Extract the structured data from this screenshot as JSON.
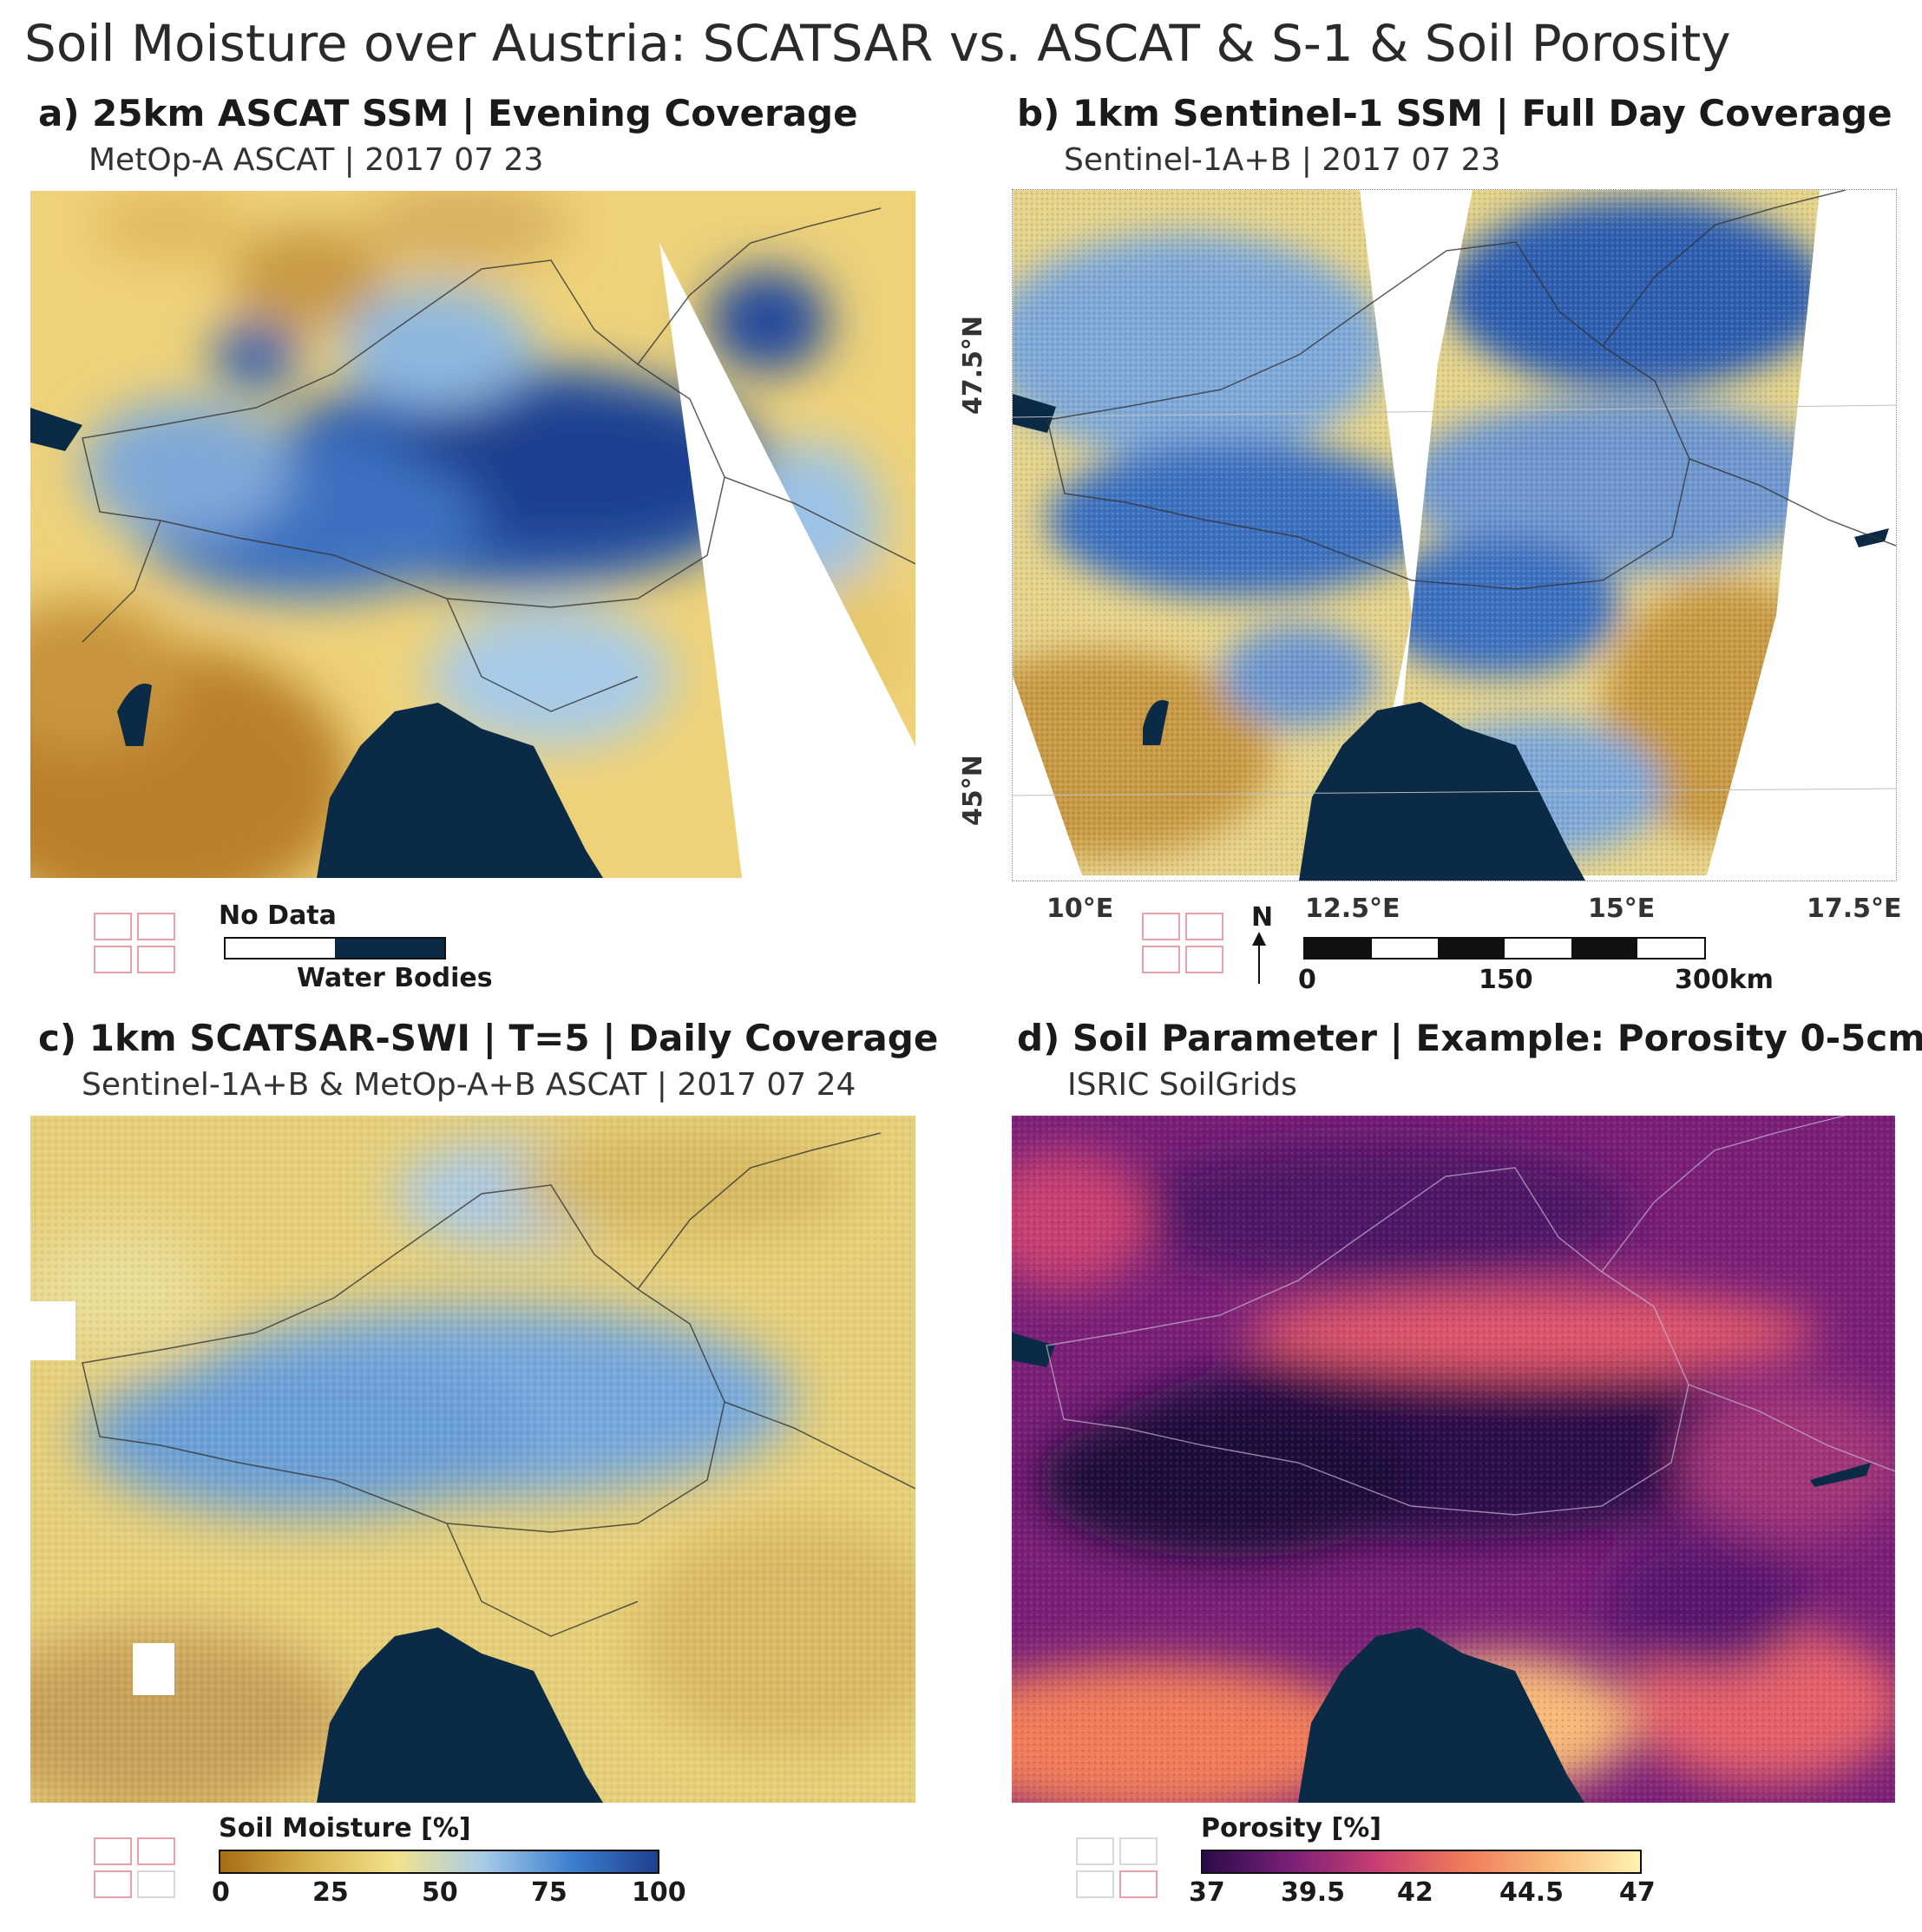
{
  "title": "Soil Moisture over Austria: SCATSAR vs. ASCAT & S-1 & Soil Porosity",
  "panels": {
    "a": {
      "title": "a) 25km ASCAT SSM | Evening Coverage",
      "subtitle": "MetOp-A ASCAT | 2017 07 23"
    },
    "b": {
      "title": "b) 1km Sentinel-1 SSM | Full Day Coverage",
      "subtitle": "Sentinel-1A+B | 2017 07 23"
    },
    "c": {
      "title": "c) 1km SCATSAR-SWI | T=5 |  Daily Coverage",
      "subtitle": "Sentinel-1A+B & MetOp-A+B ASCAT | 2017 07 24"
    },
    "d": {
      "title": "d) Soil Parameter | Example: Porosity 0-5cm",
      "subtitle": "ISRIC SoilGrids"
    }
  },
  "nodata_legend": {
    "no_data_label": "No Data",
    "water_label": "Water Bodies"
  },
  "axes": {
    "lat_labels": [
      "47.5°N",
      "45°N"
    ],
    "lon_labels": [
      "10°E",
      "12.5°E",
      "15°E",
      "17.5°E"
    ]
  },
  "north_arrow": "N",
  "scalebar": {
    "labels": [
      "0",
      "150",
      "300km"
    ]
  },
  "moisture_legend": {
    "label": "Soil Moisture [%]",
    "ticks": [
      "0",
      "25",
      "50",
      "75",
      "100"
    ]
  },
  "porosity_legend": {
    "label": "Porosity [%]",
    "ticks": [
      "37",
      "39.5",
      "42",
      "44.5",
      "47"
    ]
  },
  "colors": {
    "dry": "#a66d12",
    "mid": "#f2e28c",
    "wet": "#1f3f8f",
    "water": "#0b2a45",
    "porosity_low": "#2a0b4a",
    "porosity_high": "#fff2b0",
    "indicator": "#e8a0ab"
  }
}
